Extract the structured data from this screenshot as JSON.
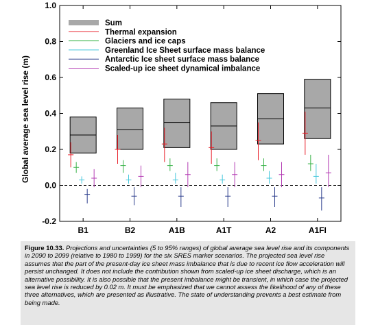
{
  "chart_data": {
    "type": "box",
    "ylabel": "Global average sea level rise (m)",
    "ylim": [
      -0.2,
      1.0
    ],
    "yticks": [
      "-0.2",
      "0.0",
      "0.2",
      "0.4",
      "0.6",
      "0.8",
      "1.0"
    ],
    "ytick_values": [
      -0.2,
      0.0,
      0.2,
      0.4,
      0.6,
      0.8,
      1.0
    ],
    "categories": [
      "B1",
      "B2",
      "A1B",
      "A1T",
      "A2",
      "A1FI"
    ],
    "zero_line": "dashed",
    "legend_position": "top-left",
    "series": [
      {
        "name": "Sum",
        "color": "#a8a8a8",
        "kind": "box",
        "low": [
          0.18,
          0.2,
          0.21,
          0.2,
          0.23,
          0.26
        ],
        "median": [
          0.28,
          0.31,
          0.35,
          0.33,
          0.37,
          0.43
        ],
        "high": [
          0.38,
          0.43,
          0.48,
          0.46,
          0.51,
          0.59
        ]
      },
      {
        "name": "Thermal expansion",
        "color": "#e8202a",
        "kind": "range",
        "low": [
          0.1,
          0.12,
          0.13,
          0.12,
          0.14,
          0.17
        ],
        "mid": [
          0.17,
          0.2,
          0.23,
          0.21,
          0.25,
          0.29
        ],
        "high": [
          0.24,
          0.28,
          0.32,
          0.3,
          0.35,
          0.41
        ]
      },
      {
        "name": "Glaciers and ice caps",
        "color": "#3cb44b",
        "kind": "range",
        "low": [
          0.07,
          0.07,
          0.08,
          0.08,
          0.08,
          0.08
        ],
        "mid": [
          0.1,
          0.11,
          0.11,
          0.11,
          0.11,
          0.12
        ],
        "high": [
          0.13,
          0.14,
          0.15,
          0.15,
          0.15,
          0.17
        ]
      },
      {
        "name": "Greenland Ice Sheet surface mass balance",
        "color": "#46c8dc",
        "kind": "range",
        "low": [
          0.01,
          0.01,
          0.01,
          0.01,
          0.01,
          0.01
        ],
        "mid": [
          0.03,
          0.03,
          0.03,
          0.03,
          0.04,
          0.05
        ],
        "high": [
          0.05,
          0.06,
          0.07,
          0.06,
          0.08,
          0.12
        ]
      },
      {
        "name": "Antarctic Ice sheet surface mass balance",
        "color": "#2a3c8c",
        "kind": "range",
        "low": [
          -0.1,
          -0.11,
          -0.12,
          -0.12,
          -0.12,
          -0.14
        ],
        "mid": [
          -0.05,
          -0.06,
          -0.06,
          -0.06,
          -0.06,
          -0.07
        ],
        "high": [
          -0.02,
          -0.01,
          -0.01,
          -0.01,
          -0.01,
          -0.01
        ]
      },
      {
        "name": "Scaled-up ice sheet dynamical imbalance",
        "color": "#b43cb4",
        "kind": "range",
        "low": [
          -0.01,
          -0.01,
          -0.01,
          -0.01,
          -0.01,
          -0.01
        ],
        "mid": [
          0.04,
          0.05,
          0.06,
          0.06,
          0.06,
          0.07
        ],
        "high": [
          0.09,
          0.11,
          0.13,
          0.13,
          0.13,
          0.17
        ]
      }
    ]
  },
  "caption": {
    "label": "Figure 10.33.",
    "text": "Projections and uncertainties (5 to 95% ranges) of global average sea level rise and its components in 2090 to 2099 (relative to 1980 to 1999) for the six SRES marker scenarios. The projected sea level rise assumes that the part of the present-day ice sheet mass imbalance that is due to recent ice flow acceleration will persist unchanged. It does not include the contribution shown from scaled-up ice sheet discharge, which is an alternative possibility. It is also possible that the present imbalance might be transient, in which case the projected sea level rise is reduced by 0.02 m. It must be emphasized that we cannot assess the likelihood of any of these three alternatives, which are presented as illustrative. The state of understanding prevents a best estimate from being made."
  }
}
